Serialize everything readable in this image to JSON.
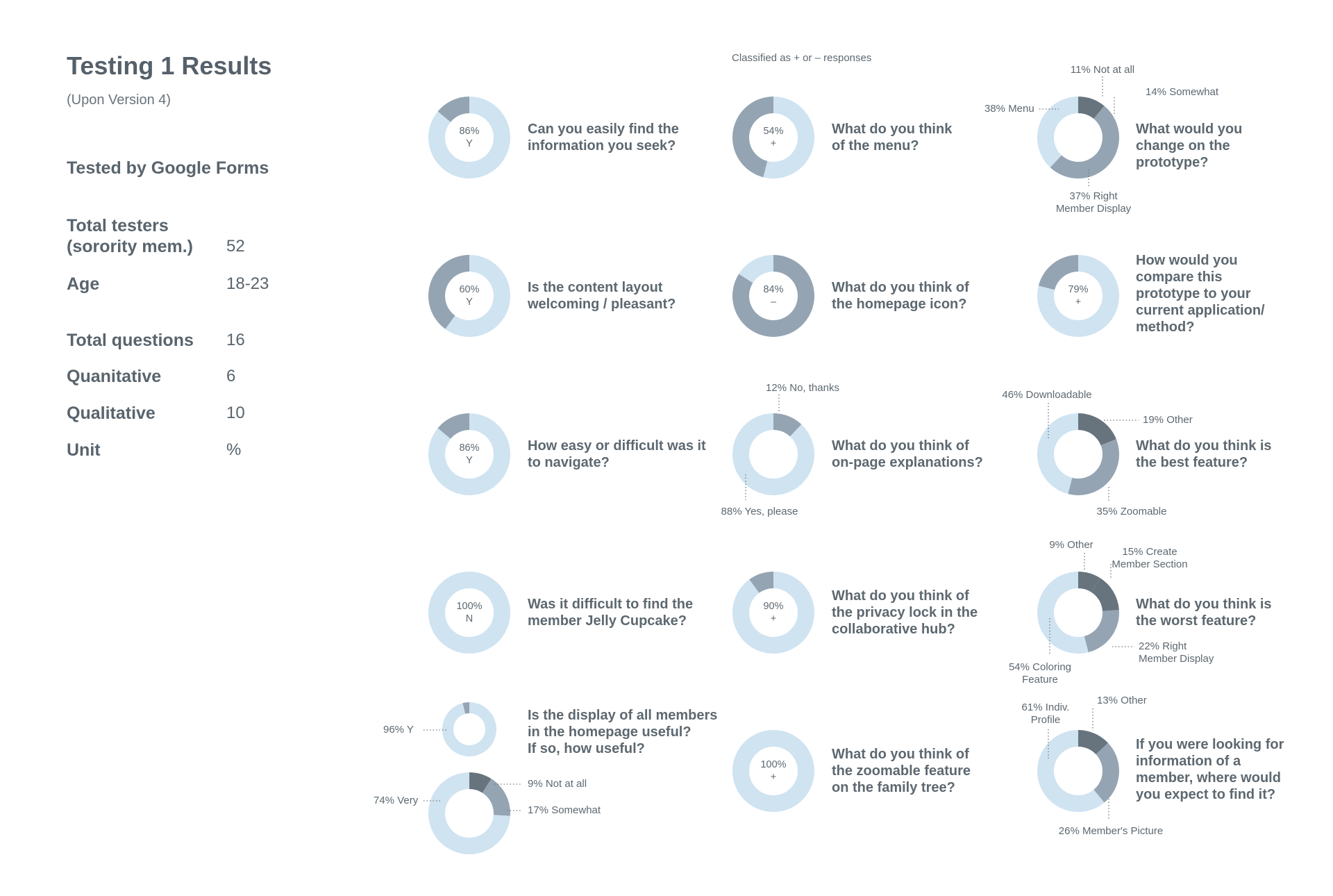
{
  "page": {
    "title": "Testing 1 Results",
    "subtitle": "(Upon Version 4)",
    "tested_by": "Tested by Google Forms",
    "note": "Classified as  +  or  –  responses"
  },
  "stats": [
    {
      "label_lines": [
        "Total testers",
        "(sorority mem.)"
      ],
      "value": "52"
    },
    {
      "label_lines": [
        "Age"
      ],
      "value": "18-23"
    },
    {
      "label_lines": [
        "Total questions"
      ],
      "value": "16"
    },
    {
      "label_lines": [
        "Quanitative"
      ],
      "value": "6"
    },
    {
      "label_lines": [
        "Qualitative"
      ],
      "value": "10"
    },
    {
      "label_lines": [
        "Unit"
      ],
      "value": "%"
    }
  ],
  "colors": {
    "light": "#cfe3f1",
    "mid": "#94a4b2",
    "dark": "#67747e"
  },
  "chart_data": [
    {
      "type": "pie",
      "question": [
        "Can you easily find the",
        "information you seek?"
      ],
      "center": [
        "86%",
        "Y"
      ],
      "slices": [
        {
          "value": 86,
          "color": "light"
        },
        {
          "value": 14,
          "color": "mid"
        }
      ]
    },
    {
      "type": "pie",
      "question": [
        "What do you think",
        "of the menu?"
      ],
      "center": [
        "54%",
        "+"
      ],
      "slices": [
        {
          "value": 54,
          "color": "light"
        },
        {
          "value": 46,
          "color": "mid"
        }
      ]
    },
    {
      "type": "pie",
      "question": [
        "What would you",
        "change on the",
        "prototype?"
      ],
      "slices": [
        {
          "value": 11,
          "color": "dark",
          "label": [
            "11% Not at all"
          ]
        },
        {
          "value": 14,
          "color": "mid",
          "label": [
            "14% Somewhat"
          ]
        },
        {
          "value": 37,
          "color": "mid",
          "label": [
            "37% Right",
            "Member Display"
          ]
        },
        {
          "value": 38,
          "color": "light",
          "label": [
            "38% Menu"
          ]
        }
      ]
    },
    {
      "type": "pie",
      "question": [
        "Is the content layout",
        "welcoming / pleasant?"
      ],
      "center": [
        "60%",
        "Y"
      ],
      "slices": [
        {
          "value": 60,
          "color": "light"
        },
        {
          "value": 40,
          "color": "mid"
        }
      ]
    },
    {
      "type": "pie",
      "question": [
        "What do you think of",
        "the homepage icon?"
      ],
      "center": [
        "84%",
        "–"
      ],
      "slices": [
        {
          "value": 84,
          "color": "mid"
        },
        {
          "value": 16,
          "color": "light"
        }
      ]
    },
    {
      "type": "pie",
      "question": [
        "How would you",
        "compare this",
        "prototype to your",
        "current application/",
        "method?"
      ],
      "center": [
        "79%",
        "+"
      ],
      "slices": [
        {
          "value": 79,
          "color": "light"
        },
        {
          "value": 21,
          "color": "mid"
        }
      ]
    },
    {
      "type": "pie",
      "question": [
        "How easy or difficult was it",
        "to navigate?"
      ],
      "center": [
        "86%",
        "Y"
      ],
      "slices": [
        {
          "value": 86,
          "color": "light"
        },
        {
          "value": 14,
          "color": "mid"
        }
      ]
    },
    {
      "type": "pie",
      "question": [
        "What do you think of",
        "on-page explanations?"
      ],
      "slices": [
        {
          "value": 12,
          "color": "mid",
          "label": [
            "12% No, thanks"
          ]
        },
        {
          "value": 88,
          "color": "light",
          "label": [
            "88% Yes, please"
          ]
        }
      ]
    },
    {
      "type": "pie",
      "question": [
        "What do you think is",
        "the best feature?"
      ],
      "slices": [
        {
          "value": 19,
          "color": "dark",
          "label": [
            "19% Other"
          ]
        },
        {
          "value": 35,
          "color": "mid",
          "label": [
            "35% Zoomable"
          ]
        },
        {
          "value": 46,
          "color": "light",
          "label": [
            "46% Downloadable"
          ]
        }
      ]
    },
    {
      "type": "pie",
      "question": [
        "Was it difficult to find the",
        "member Jelly Cupcake?"
      ],
      "center": [
        "100%",
        "N"
      ],
      "slices": [
        {
          "value": 100,
          "color": "light"
        }
      ]
    },
    {
      "type": "pie",
      "question": [
        "What do you think of",
        "the privacy lock in the",
        "collaborative hub?"
      ],
      "center": [
        "90%",
        "+"
      ],
      "slices": [
        {
          "value": 90,
          "color": "light"
        },
        {
          "value": 10,
          "color": "mid"
        }
      ]
    },
    {
      "type": "pie",
      "question": [
        "What do you think is",
        "the worst feature?"
      ],
      "slices": [
        {
          "value": 9,
          "color": "dark",
          "label": [
            "9% Other"
          ]
        },
        {
          "value": 15,
          "color": "dark",
          "label": [
            "15% Create",
            "Member Section"
          ]
        },
        {
          "value": 22,
          "color": "mid",
          "label": [
            "22% Right",
            "Member Display"
          ]
        },
        {
          "value": 54,
          "color": "light",
          "label": [
            "54% Coloring",
            "Feature"
          ]
        }
      ]
    },
    {
      "type": "pie",
      "question": [
        "Is the display of all members",
        "in the homepage useful?",
        "If so, how useful?"
      ],
      "slices": [
        {
          "value": 96,
          "color": "light",
          "label": [
            "96% Y"
          ]
        },
        {
          "value": 4,
          "color": "mid"
        }
      ]
    },
    {
      "type": "pie",
      "slices": [
        {
          "value": 9,
          "color": "dark",
          "label": [
            "9% Not at all"
          ]
        },
        {
          "value": 17,
          "color": "mid",
          "label": [
            "17% Somewhat"
          ]
        },
        {
          "value": 74,
          "color": "light",
          "label": [
            "74% Very"
          ]
        }
      ]
    },
    {
      "type": "pie",
      "question": [
        "What do you think of",
        "the zoomable feature",
        "on the family tree?"
      ],
      "center": [
        "100%",
        "+"
      ],
      "slices": [
        {
          "value": 100,
          "color": "light"
        }
      ]
    },
    {
      "type": "pie",
      "question": [
        "If you were looking for",
        "information of a",
        "member, where would",
        "you expect to find it?"
      ],
      "slices": [
        {
          "value": 13,
          "color": "dark",
          "label": [
            "13% Other"
          ]
        },
        {
          "value": 26,
          "color": "mid",
          "label": [
            "26% Member's Picture"
          ]
        },
        {
          "value": 61,
          "color": "light",
          "label": [
            "61% Indiv.",
            "Profile"
          ]
        }
      ]
    }
  ]
}
